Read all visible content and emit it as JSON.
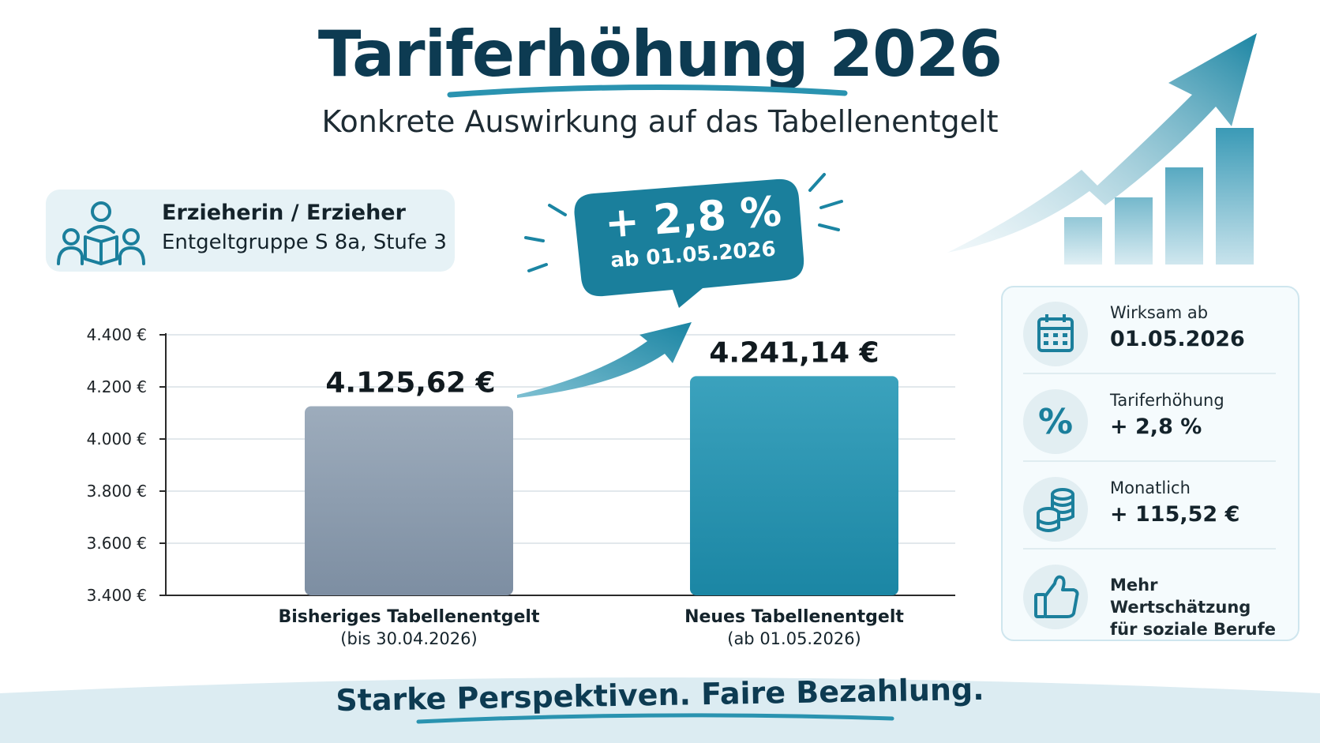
{
  "header": {
    "title": "Tariferhöhung 2026",
    "subtitle": "Konkrete Auswirkung auf das Tabellenentgelt"
  },
  "profile": {
    "title": "Erzieherin / Erzieher",
    "subtitle": "Entgeltgruppe S 8a, Stufe 3",
    "icon": "reading-group-icon"
  },
  "bubble": {
    "main": "+ 2,8 %",
    "sub": "ab 01.05.2026"
  },
  "info": [
    {
      "icon": "calendar-icon",
      "label": "Wirksam ab",
      "value": "01.05.2026"
    },
    {
      "icon": "percent-icon",
      "label": "Tariferhöhung",
      "value": "+ 2,8 %"
    },
    {
      "icon": "coins-icon",
      "label": "Monatlich",
      "value": "+ 115,52 €"
    },
    {
      "icon": "thumbs-up-icon",
      "line1": "Mehr Wertschätzung",
      "line2": "für soziale Berufe"
    }
  ],
  "footer": "Starke Perspektiven. Faire Bezahlung.",
  "colors": {
    "primary": "#0d3b52",
    "accent": "#1f8fac",
    "grey_bar": "#8b9bad",
    "teal_bar": "#2390ad"
  },
  "chart_data": {
    "type": "bar",
    "categories": [
      "Bisheriges Tabellenentgelt",
      "Neues Tabellenentgelt"
    ],
    "category_sublabels": [
      "(bis 30.04.2026)",
      "(ab 01.05.2026)"
    ],
    "values": [
      4125.62,
      4241.14
    ],
    "value_labels": [
      "4.125,62 €",
      "4.241,14 €"
    ],
    "ylim": [
      3400,
      4400
    ],
    "yticks": [
      3400,
      3600,
      3800,
      4000,
      4200,
      4400
    ],
    "ytick_labels": [
      "3.400 €",
      "3.600 €",
      "3.800 €",
      "4.000 €",
      "4.200 €",
      "4.400 €"
    ],
    "grid": true
  }
}
